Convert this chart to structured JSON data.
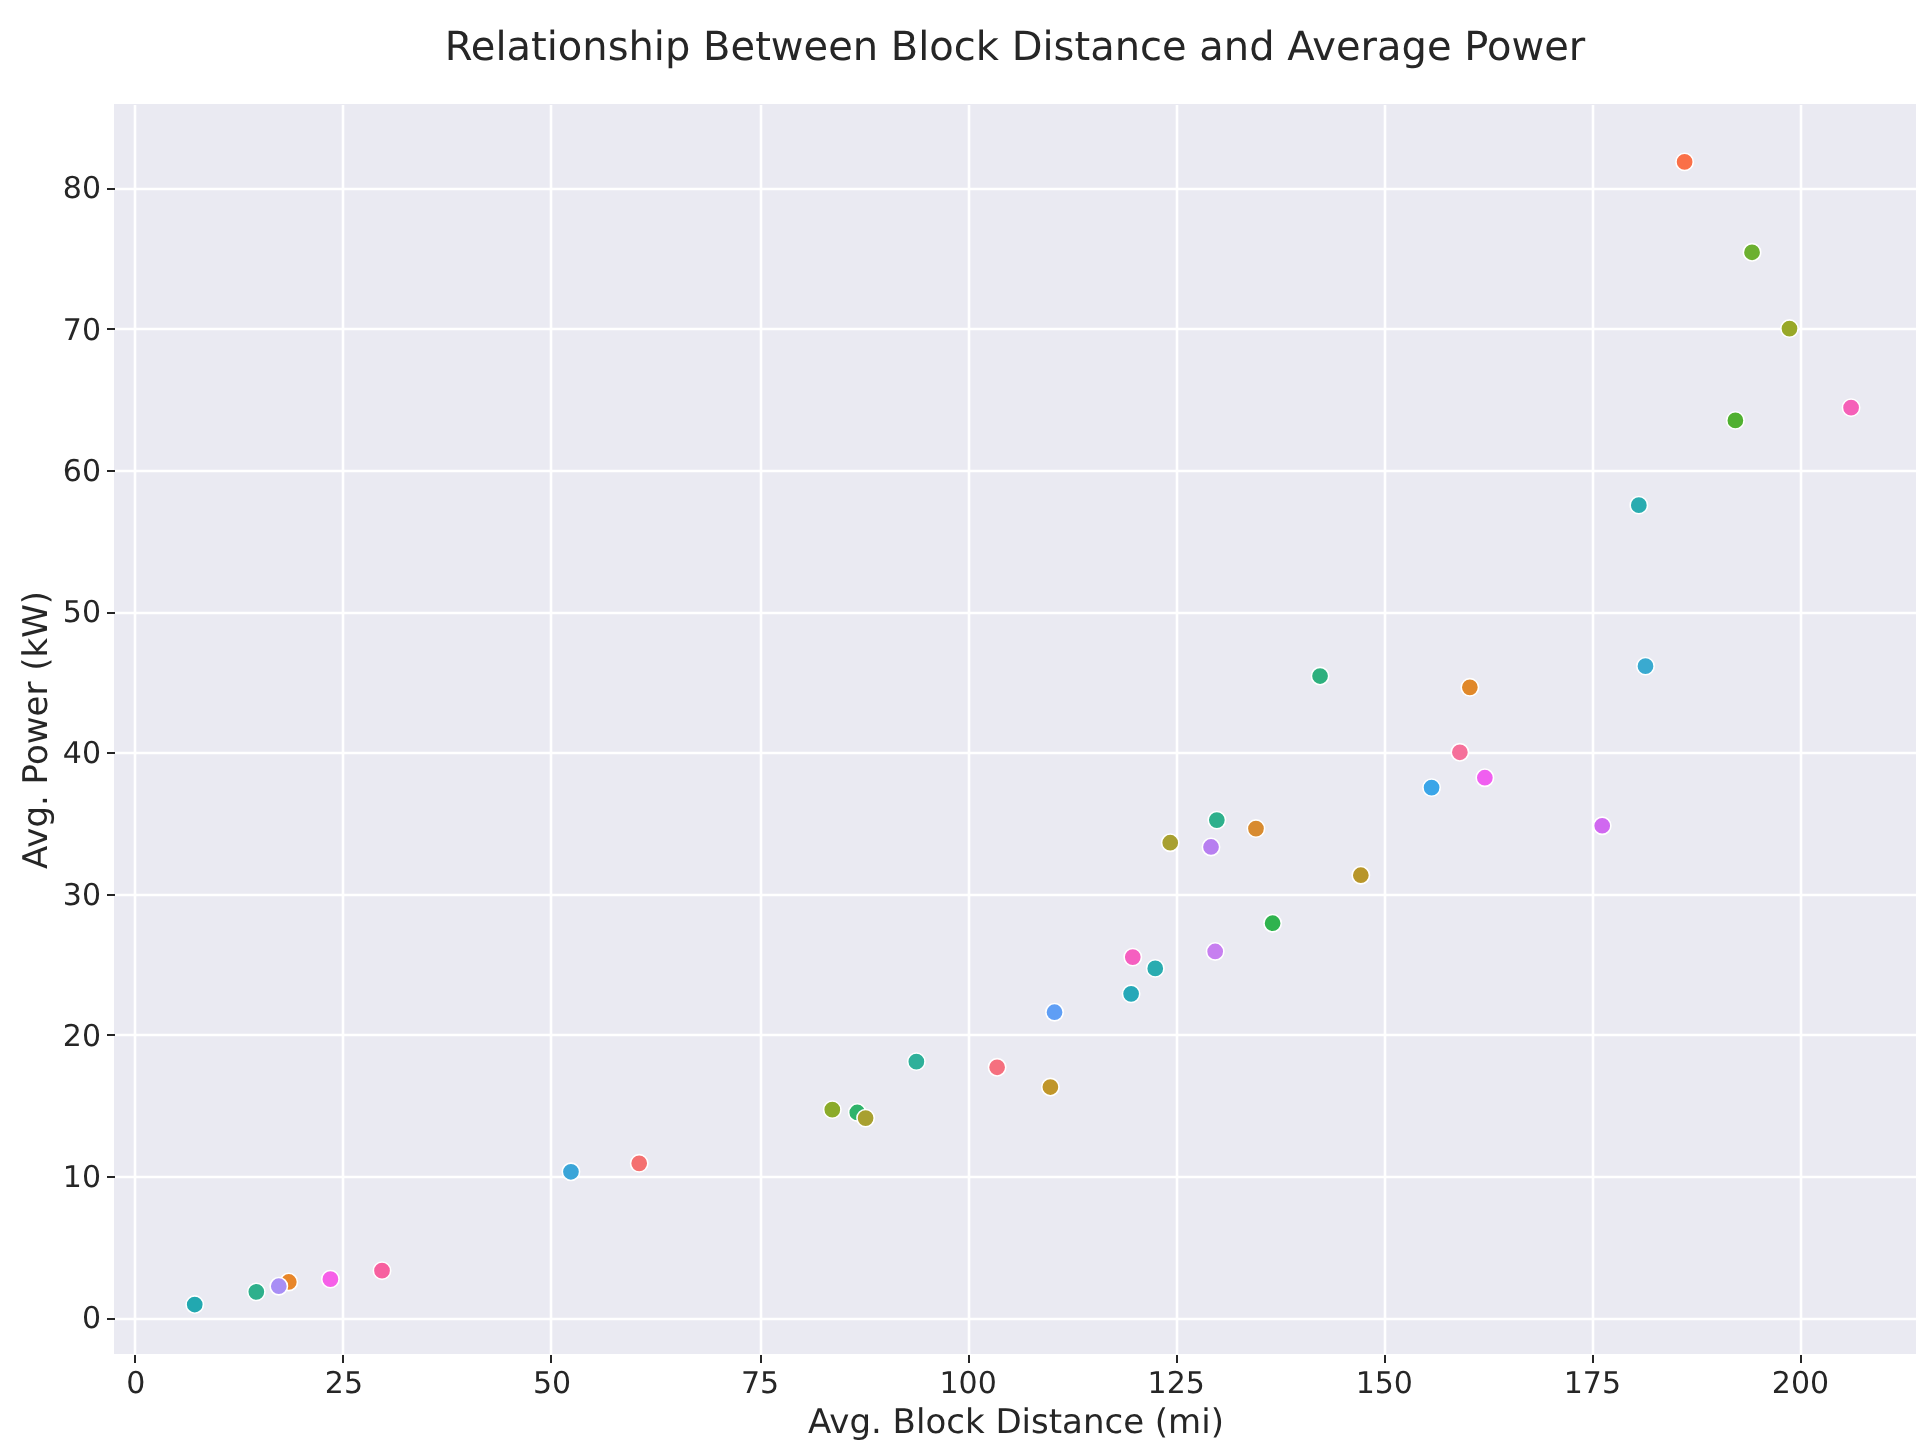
{
  "chart_data": {
    "type": "scatter",
    "title": "Relationship Between Block Distance and Average Power",
    "xlabel": "Avg. Block Distance (mi)",
    "ylabel": "Avg. Power (kW)",
    "x": [
      7.2,
      14.6,
      18.5,
      17.3,
      23.5,
      29.7,
      52.4,
      60.6,
      83.8,
      86.8,
      87.8,
      93.9,
      103.6,
      110.0,
      110.5,
      119.7,
      119.9,
      122.6,
      124.4,
      129.3,
      130.0,
      134.7,
      129.8,
      136.7,
      142.4,
      147.3,
      159.2,
      155.8,
      160.4,
      162.2,
      176.3,
      180.7,
      181.5,
      186.2,
      194.3,
      198.8,
      192.3,
      206.2
    ],
    "values": [
      0.9,
      1.8,
      2.5,
      2.2,
      2.7,
      3.3,
      10.3,
      10.9,
      14.7,
      14.5,
      14.1,
      18.1,
      17.7,
      16.3,
      21.6,
      22.9,
      25.5,
      24.7,
      33.6,
      33.3,
      35.2,
      34.6,
      25.9,
      27.9,
      45.4,
      31.3,
      40.0,
      37.5,
      44.6,
      38.2,
      34.8,
      57.5,
      46.1,
      81.8,
      75.4,
      70.0,
      63.5,
      64.4
    ],
    "colors": [
      "#22a8b0",
      "#2eb08c",
      "#e8862a",
      "#a88ef5",
      "#f660e8",
      "#f7609f",
      "#3aa5d8",
      "#f47070",
      "#8bab2a",
      "#2fb36b",
      "#a8a030",
      "#2eb09a",
      "#f5707f",
      "#c0962a",
      "#5f9ef5",
      "#26a8b8",
      "#f55fc0",
      "#2aacb0",
      "#a8a030",
      "#b77ff0",
      "#2eb08c",
      "#d88b30",
      "#c77ff0",
      "#2fb34e",
      "#2eb07e",
      "#b8962a",
      "#f5709a",
      "#3aa5e8",
      "#e0882a",
      "#f05ff0",
      "#d068f0",
      "#2aacb0",
      "#3aaad0",
      "#fa7048",
      "#6cb030",
      "#98a828",
      "#50b030",
      "#f560b8"
    ],
    "xlim": [
      -2.5,
      214
    ],
    "ylim": [
      -2.6,
      85.9
    ],
    "xticks": [
      0,
      25,
      50,
      75,
      100,
      125,
      150,
      175,
      200
    ],
    "yticks": [
      0,
      10,
      20,
      30,
      40,
      50,
      60,
      70,
      80
    ],
    "grid": true,
    "marker": "circle",
    "legend": false
  }
}
